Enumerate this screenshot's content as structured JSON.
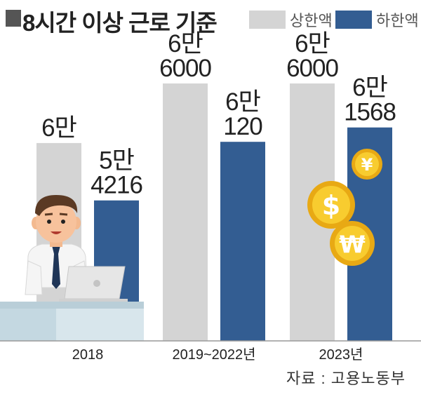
{
  "title": "8시간 이상 근로 기준",
  "legend": [
    {
      "label": "상한액",
      "color": "#d4d4d4"
    },
    {
      "label": "하한액",
      "color": "#335d92"
    }
  ],
  "chart_data": {
    "type": "bar",
    "title": "8시간 이상 근로 기준",
    "categories": [
      "2018",
      "2019~2022년",
      "2023년"
    ],
    "series": [
      {
        "name": "상한액",
        "values": [
          60000,
          66000,
          66000
        ],
        "labels": [
          "6만",
          "6만\n6000",
          "6만\n6000"
        ],
        "color": "#d4d4d4"
      },
      {
        "name": "하한액",
        "values": [
          54216,
          60120,
          61568
        ],
        "labels": [
          "5만\n4216",
          "6만\n120",
          "6만\n1568"
        ],
        "color": "#335d92"
      }
    ]
  },
  "source": "자료 : 고용노동부",
  "icons": [
    "office-worker-illustration",
    "dollar-coin-icon",
    "won-coin-icon",
    "yen-coin-icon"
  ]
}
